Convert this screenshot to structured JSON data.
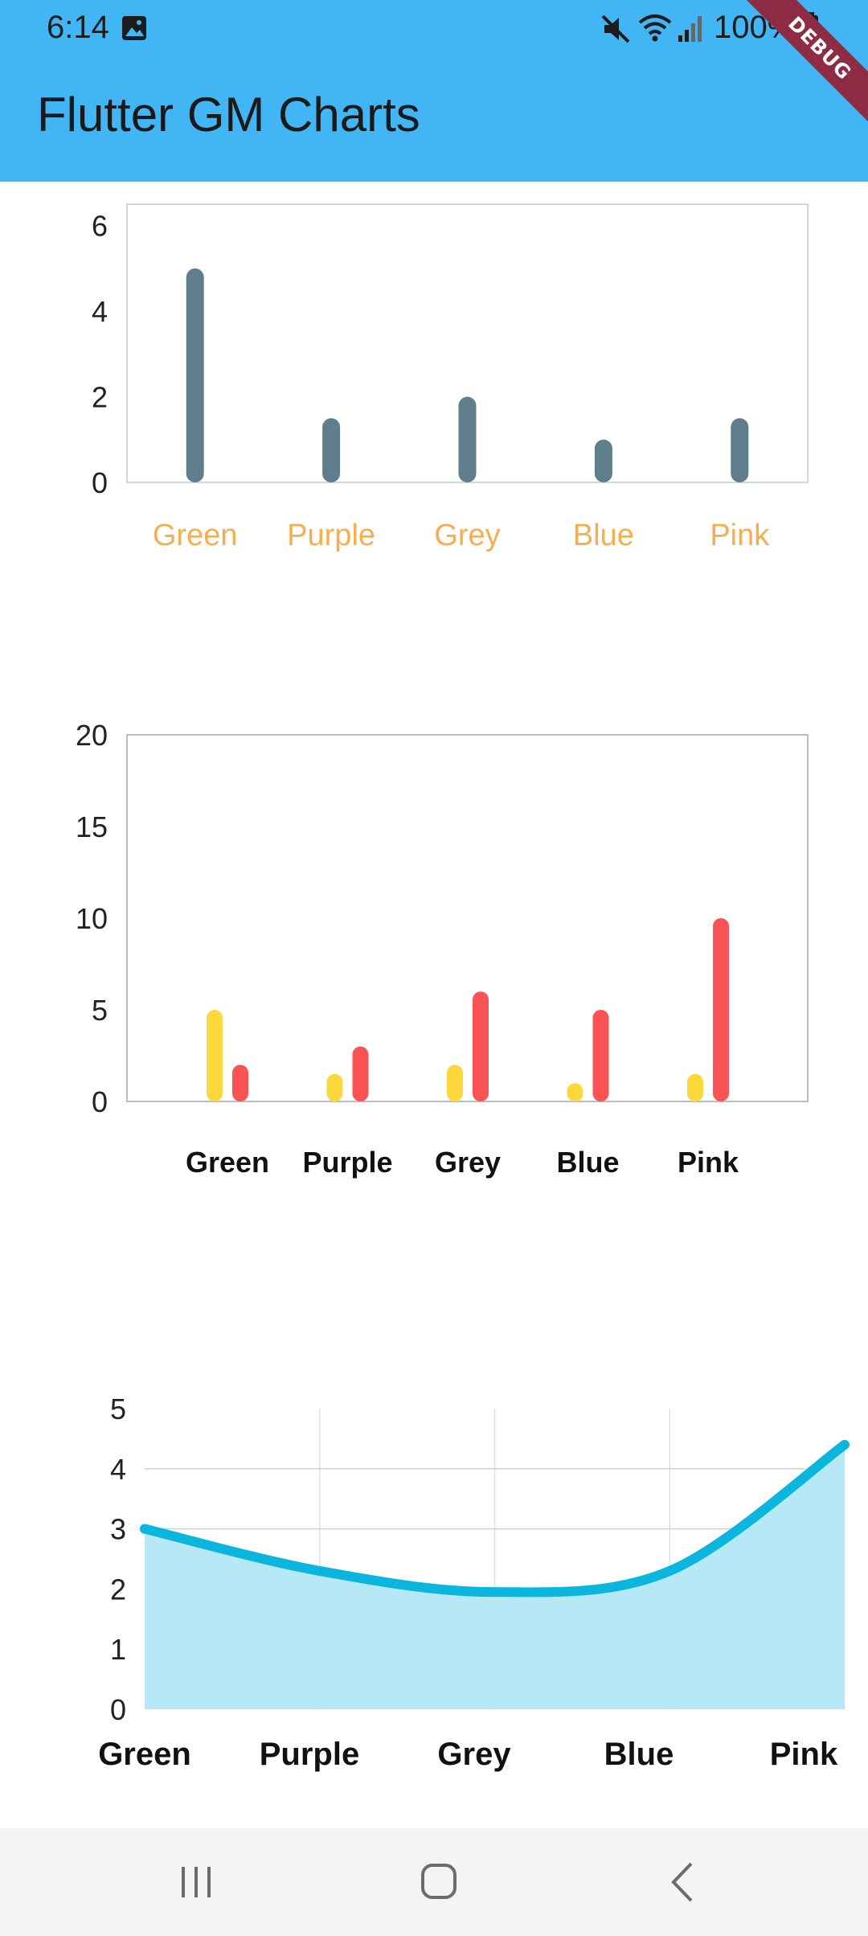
{
  "status_bar": {
    "time": "6:14",
    "battery": "100%",
    "icons": [
      "gallery-icon",
      "mute-icon",
      "wifi-icon",
      "signal-icon",
      "battery-icon"
    ]
  },
  "app_bar": {
    "title": "Flutter GM Charts",
    "background_color": "#42b6f5"
  },
  "debug_banner": "DEBUG",
  "nav_bar": {
    "icons": [
      "recent-apps-icon",
      "home-icon",
      "back-icon"
    ]
  },
  "chart_data": [
    {
      "type": "bar",
      "categories": [
        "Green",
        "Purple",
        "Grey",
        "Blue",
        "Pink"
      ],
      "values": [
        5,
        1.5,
        2,
        1,
        1.5
      ],
      "ylim": [
        0,
        6.5
      ],
      "yticks": [
        "0",
        "2",
        "4",
        "6"
      ],
      "bar_color": "#607d8b",
      "label_color": "#f5ae52",
      "grid": false
    },
    {
      "type": "bar",
      "categories": [
        "Green",
        "Purple",
        "Grey",
        "Blue",
        "Pink"
      ],
      "series": [
        {
          "values": [
            5,
            1.5,
            2,
            1,
            1.5
          ],
          "color": "#fdd83c"
        },
        {
          "values": [
            2,
            3,
            6,
            5,
            10
          ],
          "color": "#fa5353"
        }
      ],
      "ylim": [
        0,
        20
      ],
      "yticks": [
        "0",
        "5",
        "10",
        "15",
        "20"
      ],
      "grid": false
    },
    {
      "type": "area",
      "categories": [
        "Green",
        "Purple",
        "Grey",
        "Blue",
        "Pink"
      ],
      "values": [
        3,
        2.3,
        1.95,
        2.3,
        4.4
      ],
      "ylim": [
        0,
        5
      ],
      "yticks": [
        "0",
        "1",
        "2",
        "3",
        "4",
        "5"
      ],
      "line_color": "#0ab6dd",
      "fill_color": "#b2e8f4",
      "grid": true
    }
  ]
}
